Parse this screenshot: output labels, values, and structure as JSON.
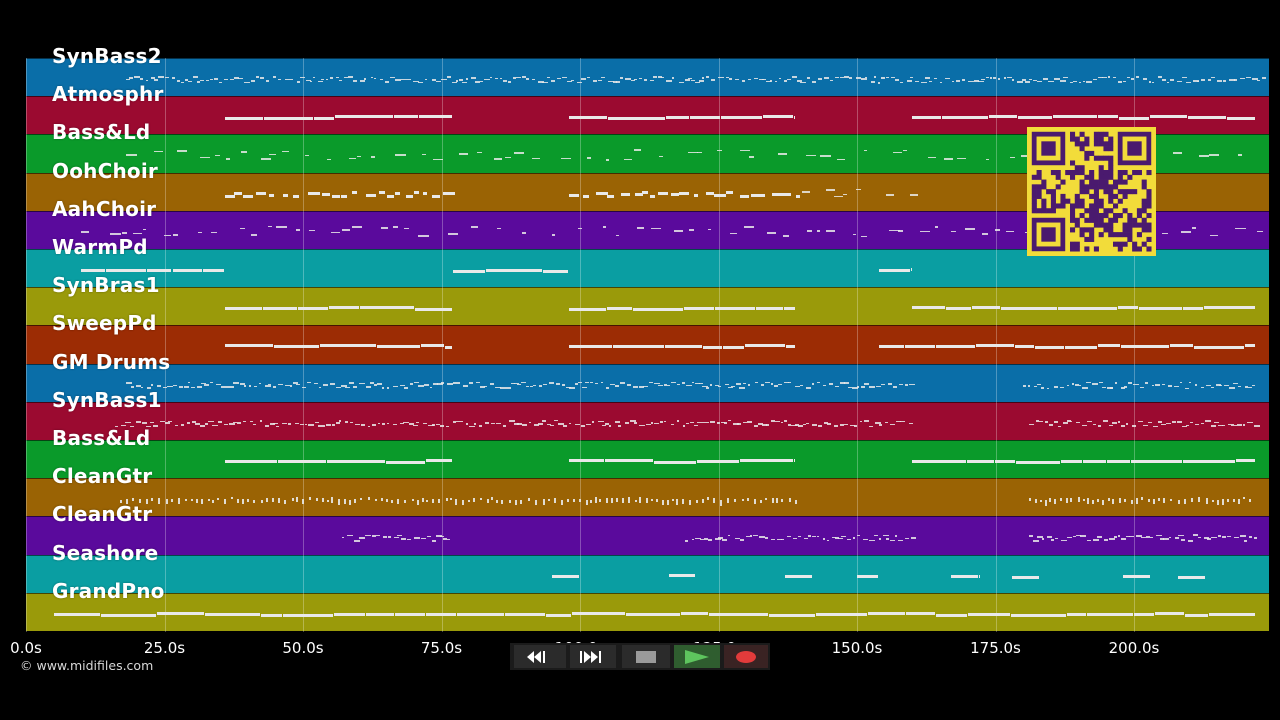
{
  "app": {
    "copyright": "© www.midifiles.com"
  },
  "timeline": {
    "tick_labels": [
      "0.0s",
      "25.0s",
      "50.0s",
      "75.0s",
      "100.0s",
      "125.0s",
      "150.0s",
      "175.0s",
      "200.0s"
    ],
    "tick_values": [
      0,
      25,
      50,
      75,
      100,
      125,
      150,
      175,
      200
    ],
    "x_range": [
      0,
      225
    ]
  },
  "tracks": [
    {
      "name": "SynBass2",
      "color": "#0a6ea8"
    },
    {
      "name": "Atmosphr",
      "color": "#9b0a30"
    },
    {
      "name": "Bass&Ld",
      "color": "#0a9a2a"
    },
    {
      "name": "OohChoir",
      "color": "#9a6304"
    },
    {
      "name": "AahChoir",
      "color": "#5a0a9c"
    },
    {
      "name": "WarmPd",
      "color": "#0a9ea2"
    },
    {
      "name": "SynBras1",
      "color": "#9a9a0a"
    },
    {
      "name": "SweepPd",
      "color": "#9c2c04"
    },
    {
      "name": "GM Drums",
      "color": "#0a6ea8"
    },
    {
      "name": "SynBass1",
      "color": "#9b0a30"
    },
    {
      "name": "Bass&Ld",
      "color": "#0a9a2a"
    },
    {
      "name": "CleanGtr",
      "color": "#9a6304"
    },
    {
      "name": "CleanGtr",
      "color": "#5a0a9c"
    },
    {
      "name": "Seashore",
      "color": "#0a9ea2"
    },
    {
      "name": "GrandPno",
      "color": "#9a9a0a"
    }
  ],
  "notes": [
    {
      "track": 0,
      "segments": [
        [
          18,
          224,
          "dense"
        ]
      ]
    },
    {
      "track": 1,
      "segments": [
        [
          36,
          77,
          "solid"
        ],
        [
          98,
          139,
          "solid"
        ],
        [
          160,
          222,
          "solid"
        ]
      ]
    },
    {
      "track": 2,
      "segments": [
        [
          18,
          224,
          "sparse"
        ]
      ]
    },
    {
      "track": 3,
      "segments": [
        [
          36,
          77,
          "dashes"
        ],
        [
          98,
          139,
          "dashes"
        ],
        [
          140,
          160,
          "sparse"
        ]
      ]
    },
    {
      "track": 4,
      "segments": [
        [
          10,
          224,
          "sparse"
        ]
      ]
    },
    {
      "track": 5,
      "segments": [
        [
          10,
          36,
          "solid"
        ],
        [
          77,
          98,
          "solid"
        ],
        [
          154,
          160,
          "solid"
        ]
      ]
    },
    {
      "track": 6,
      "segments": [
        [
          36,
          77,
          "solid"
        ],
        [
          98,
          139,
          "solid"
        ],
        [
          160,
          222,
          "solid"
        ]
      ]
    },
    {
      "track": 7,
      "segments": [
        [
          36,
          77,
          "solid"
        ],
        [
          98,
          139,
          "solid"
        ],
        [
          154,
          222,
          "solid"
        ]
      ]
    },
    {
      "track": 8,
      "segments": [
        [
          18,
          160,
          "dense"
        ],
        [
          180,
          222,
          "dense"
        ]
      ]
    },
    {
      "track": 9,
      "segments": [
        [
          16,
          160,
          "dense"
        ],
        [
          181,
          222,
          "dense"
        ]
      ]
    },
    {
      "track": 10,
      "segments": [
        [
          36,
          77,
          "solid"
        ],
        [
          98,
          139,
          "solid"
        ],
        [
          160,
          222,
          "solid"
        ]
      ]
    },
    {
      "track": 11,
      "segments": [
        [
          17,
          139,
          "dotted"
        ],
        [
          181,
          222,
          "dotted"
        ]
      ]
    },
    {
      "track": 12,
      "segments": [
        [
          57,
          77,
          "dense"
        ],
        [
          119,
          160,
          "dense"
        ],
        [
          181,
          222,
          "dense"
        ]
      ]
    },
    {
      "track": 13,
      "segments": [
        [
          95,
          100,
          "solid"
        ],
        [
          116,
          121,
          "solid"
        ],
        [
          137,
          142,
          "solid"
        ],
        [
          150,
          154,
          "solid"
        ],
        [
          167,
          172,
          "solid"
        ],
        [
          178,
          183,
          "solid"
        ],
        [
          198,
          203,
          "solid"
        ],
        [
          208,
          213,
          "solid"
        ]
      ]
    },
    {
      "track": 14,
      "segments": [
        [
          5,
          222,
          "solid"
        ]
      ]
    }
  ]
}
